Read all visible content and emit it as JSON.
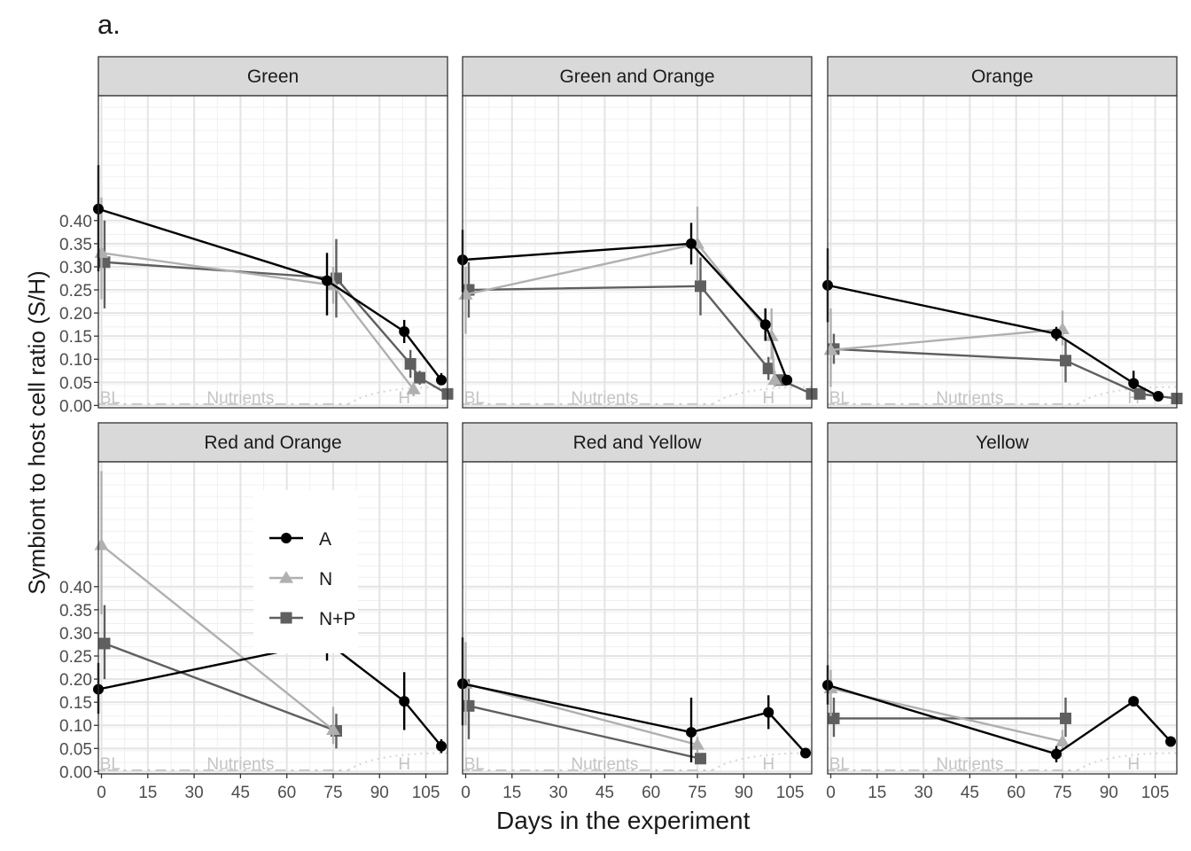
{
  "panel_letter": "a.",
  "chart_data": {
    "type": "line",
    "xlabel": "Days in the experiment",
    "ylabel": "Symbiont to host cell ratio  (S/H)",
    "x_ticks": [
      0,
      15,
      30,
      45,
      60,
      75,
      90,
      105
    ],
    "y_ticks": [
      "0.00",
      "0.05",
      "0.10",
      "0.15",
      "0.20",
      "0.25",
      "0.30",
      "0.35",
      "0.40"
    ],
    "xlim": [
      -1,
      112
    ],
    "ylim": [
      -0.005,
      0.67
    ],
    "annotations": [
      "BL",
      "Nutrients",
      "H"
    ],
    "legend": {
      "placement": "inside Red and Orange panel",
      "entries": [
        "A",
        "N",
        "N+P"
      ]
    },
    "colors": {
      "A": "#000000",
      "N": "#b0b0b0",
      "N+P": "#5f5f5f"
    },
    "markers": {
      "A": "circle",
      "N": "triangle",
      "N+P": "square"
    },
    "facets": [
      {
        "title": "Green",
        "series": [
          {
            "name": "A",
            "points": [
              [
                -1,
                0.425,
                0.29,
                0.52
              ],
              [
                73,
                0.27,
                0.195,
                0.33
              ],
              [
                98,
                0.16,
                0.135,
                0.185
              ],
              [
                110,
                0.055,
                0.045,
                0.07
              ]
            ]
          },
          {
            "name": "N",
            "points": [
              [
                0,
                0.33,
                0.23,
                0.45
              ],
              [
                75,
                0.26,
                0.22,
                0.3
              ],
              [
                101,
                0.035,
                0.02,
                0.05
              ]
            ]
          },
          {
            "name": "N+P",
            "points": [
              [
                1,
                0.31,
                0.21,
                0.4
              ],
              [
                76,
                0.275,
                0.19,
                0.36
              ],
              [
                100,
                0.09,
                0.06,
                0.12
              ],
              [
                103,
                0.06,
                0.045,
                0.075
              ],
              [
                112,
                0.025,
                0.015,
                0.035
              ]
            ]
          }
        ]
      },
      {
        "title": "Green and Orange",
        "series": [
          {
            "name": "A",
            "points": [
              [
                -1,
                0.315,
                0.245,
                0.38
              ],
              [
                73,
                0.35,
                0.305,
                0.395
              ],
              [
                97,
                0.175,
                0.14,
                0.21
              ],
              [
                104,
                0.055,
                0.045,
                0.065
              ]
            ]
          },
          {
            "name": "N",
            "points": [
              [
                0,
                0.24,
                0.155,
                0.3
              ],
              [
                75,
                0.35,
                0.27,
                0.43
              ],
              [
                99,
                0.15,
                0.1,
                0.21
              ],
              [
                100,
                0.055,
                0.04,
                0.075
              ]
            ]
          },
          {
            "name": "N+P",
            "points": [
              [
                1,
                0.25,
                0.19,
                0.31
              ],
              [
                76,
                0.258,
                0.195,
                0.32
              ],
              [
                98,
                0.08,
                0.055,
                0.105
              ],
              [
                102,
                0.055,
                0.045,
                0.065
              ],
              [
                112,
                0.025,
                0.015,
                0.035
              ]
            ]
          }
        ]
      },
      {
        "title": "Orange",
        "series": [
          {
            "name": "A",
            "points": [
              [
                -1,
                0.26,
                0.18,
                0.34
              ],
              [
                73,
                0.155,
                0.14,
                0.17
              ],
              [
                98,
                0.048,
                0.035,
                0.075
              ],
              [
                106,
                0.02,
                0.015,
                0.025
              ]
            ]
          },
          {
            "name": "N",
            "points": [
              [
                0,
                0.12,
                0.04,
                0.21
              ],
              [
                75,
                0.165,
                0.13,
                0.205
              ]
            ]
          },
          {
            "name": "N+P",
            "points": [
              [
                1,
                0.122,
                0.09,
                0.155
              ],
              [
                76,
                0.097,
                0.05,
                0.14
              ],
              [
                100,
                0.025,
                0.015,
                0.035
              ],
              [
                112,
                0.015,
                0.01,
                0.02
              ]
            ]
          }
        ]
      },
      {
        "title": "Red and Orange",
        "series": [
          {
            "name": "A",
            "points": [
              [
                -1,
                0.178,
                0.125,
                0.235
              ],
              [
                73,
                0.28,
                0.24,
                0.32
              ],
              [
                98,
                0.152,
                0.09,
                0.215
              ],
              [
                110,
                0.055,
                0.04,
                0.07
              ]
            ]
          },
          {
            "name": "N",
            "points": [
              [
                0,
                0.49,
                0.34,
                0.65
              ],
              [
                75,
                0.09,
                0.06,
                0.14
              ]
            ]
          },
          {
            "name": "N+P",
            "points": [
              [
                1,
                0.277,
                0.2,
                0.36
              ],
              [
                76,
                0.088,
                0.05,
                0.125
              ]
            ]
          }
        ]
      },
      {
        "title": "Red and Yellow",
        "series": [
          {
            "name": "A",
            "points": [
              [
                -1,
                0.19,
                0.1,
                0.29
              ],
              [
                73,
                0.085,
                0.02,
                0.16
              ],
              [
                98,
                0.128,
                0.092,
                0.165
              ],
              [
                110,
                0.04,
                0.035,
                0.045
              ]
            ]
          },
          {
            "name": "N",
            "points": [
              [
                0,
                0.19,
                0.1,
                0.28
              ],
              [
                75,
                0.058,
                0.04,
                0.075
              ]
            ]
          },
          {
            "name": "N+P",
            "points": [
              [
                1,
                0.142,
                0.07,
                0.2
              ],
              [
                76,
                0.028,
                0.018,
                0.038
              ]
            ]
          }
        ]
      },
      {
        "title": "Yellow",
        "series": [
          {
            "name": "A",
            "points": [
              [
                -1,
                0.187,
                0.145,
                0.23
              ],
              [
                73,
                0.038,
                0.02,
                0.055
              ],
              [
                98,
                0.152,
                0.145,
                0.158
              ],
              [
                110,
                0.065,
                0.06,
                0.07
              ]
            ]
          },
          {
            "name": "N",
            "points": [
              [
                0,
                0.18,
                0.12,
                0.22
              ],
              [
                75,
                0.065,
                0.045,
                0.09
              ]
            ]
          },
          {
            "name": "N+P",
            "points": [
              [
                1,
                0.115,
                0.075,
                0.16
              ],
              [
                76,
                0.115,
                0.075,
                0.16
              ]
            ]
          }
        ]
      }
    ]
  }
}
